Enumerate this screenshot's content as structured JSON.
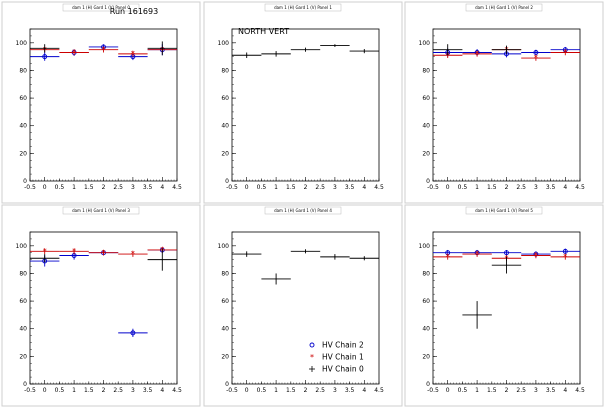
{
  "run_label": "Run 161693",
  "legend": [
    {
      "label": "HV Chain 2",
      "color": "#0000cc",
      "marker": "circle"
    },
    {
      "label": "HV Chain 1",
      "color": "#cc0000",
      "marker": "star"
    },
    {
      "label": "HV Chain 0",
      "color": "#000000",
      "marker": "cross"
    }
  ],
  "chart_data": [
    {
      "type": "scatter",
      "pad_title": "dam 1 (H) Gard 1 (V) Panel 0",
      "xlim": [
        -0.5,
        4.5
      ],
      "ylim": [
        0,
        110
      ],
      "xticks": [
        "-0.5",
        "0",
        "0.5",
        "1",
        "1.5",
        "2",
        "2.5",
        "3",
        "3.5",
        "4",
        "4.5"
      ],
      "yticks": [
        "0",
        "20",
        "40",
        "60",
        "80",
        "100"
      ],
      "series": [
        {
          "name": "HV Chain 2",
          "color": "#0000cc",
          "points": [
            {
              "x": 0,
              "y": 90,
              "err": 3
            },
            {
              "x": 1,
              "y": 93,
              "err": 2.5
            },
            {
              "x": 2,
              "y": 97,
              "err": 2
            },
            {
              "x": 3,
              "y": 90,
              "err": 2.5
            },
            {
              "x": 4,
              "y": 95,
              "err": 4
            }
          ]
        },
        {
          "name": "HV Chain 1",
          "color": "#cc0000",
          "points": [
            {
              "x": 0,
              "y": 95,
              "err": 2
            },
            {
              "x": 1,
              "y": 93,
              "err": 2
            },
            {
              "x": 2,
              "y": 95,
              "err": 2
            },
            {
              "x": 3,
              "y": 92,
              "err": 2
            },
            {
              "x": 4,
              "y": 95,
              "err": 2
            }
          ]
        },
        {
          "name": "HV Chain 0",
          "color": "#000000",
          "points": [
            {
              "x": 0,
              "y": 96,
              "err": 3
            },
            {
              "x": 4,
              "y": 96,
              "err": 5
            }
          ]
        }
      ]
    },
    {
      "type": "scatter",
      "pad_title": "dam 1 (H) Gard 1 (V) Panel 1",
      "label": "NORTH VERT",
      "xlim": [
        -0.5,
        4.5
      ],
      "ylim": [
        0,
        110
      ],
      "xticks": [
        "-0.5",
        "0",
        "0.5",
        "1",
        "1.5",
        "2",
        "2.5",
        "3",
        "3.5",
        "4",
        "4.5"
      ],
      "yticks": [
        "0",
        "20",
        "40",
        "60",
        "80",
        "100"
      ],
      "series": [
        {
          "name": "HV Chain 0",
          "color": "#000000",
          "points": [
            {
              "x": 0,
              "y": 91,
              "err": 2
            },
            {
              "x": 1,
              "y": 92,
              "err": 2
            },
            {
              "x": 2,
              "y": 95,
              "err": 1.5
            },
            {
              "x": 3,
              "y": 98,
              "err": 1
            },
            {
              "x": 4,
              "y": 94,
              "err": 1.5
            }
          ]
        }
      ]
    },
    {
      "type": "scatter",
      "pad_title": "dam 1 (H) Gard 1 (V) Panel 2",
      "xlim": [
        -0.5,
        4.5
      ],
      "ylim": [
        0,
        110
      ],
      "xticks": [
        "-0.5",
        "0",
        "0.5",
        "1",
        "1.5",
        "2",
        "2.5",
        "3",
        "3.5",
        "4",
        "4.5"
      ],
      "yticks": [
        "0",
        "20",
        "40",
        "60",
        "80",
        "100"
      ],
      "series": [
        {
          "name": "HV Chain 2",
          "color": "#0000cc",
          "points": [
            {
              "x": 0,
              "y": 93,
              "err": 3
            },
            {
              "x": 1,
              "y": 93,
              "err": 2.5
            },
            {
              "x": 2,
              "y": 92,
              "err": 2.5
            },
            {
              "x": 3,
              "y": 93,
              "err": 2
            },
            {
              "x": 4,
              "y": 95,
              "err": 2
            }
          ]
        },
        {
          "name": "HV Chain 1",
          "color": "#cc0000",
          "points": [
            {
              "x": 0,
              "y": 91,
              "err": 2
            },
            {
              "x": 1,
              "y": 92,
              "err": 2
            },
            {
              "x": 2,
              "y": 95,
              "err": 2
            },
            {
              "x": 3,
              "y": 89,
              "err": 2
            },
            {
              "x": 4,
              "y": 93,
              "err": 2
            }
          ]
        },
        {
          "name": "HV Chain 0",
          "color": "#000000",
          "points": [
            {
              "x": 0,
              "y": 95,
              "err": 4
            },
            {
              "x": 2,
              "y": 95,
              "err": 3
            }
          ]
        }
      ]
    },
    {
      "type": "scatter",
      "pad_title": "dam 1 (H) Gard 1 (V) Panel 3",
      "xlim": [
        -0.5,
        4.5
      ],
      "ylim": [
        0,
        110
      ],
      "xticks": [
        "-0.5",
        "0",
        "0.5",
        "1",
        "1.5",
        "2",
        "2.5",
        "3",
        "3.5",
        "4",
        "4.5"
      ],
      "yticks": [
        "0",
        "20",
        "40",
        "60",
        "80",
        "100"
      ],
      "series": [
        {
          "name": "HV Chain 2",
          "color": "#0000cc",
          "points": [
            {
              "x": 0,
              "y": 89,
              "err": 4
            },
            {
              "x": 1,
              "y": 93,
              "err": 3
            },
            {
              "x": 2,
              "y": 95,
              "err": 2
            },
            {
              "x": 3,
              "y": 37,
              "err": 3
            },
            {
              "x": 4,
              "y": 97,
              "err": 2
            }
          ]
        },
        {
          "name": "HV Chain 1",
          "color": "#cc0000",
          "points": [
            {
              "x": 0,
              "y": 96,
              "err": 2
            },
            {
              "x": 1,
              "y": 96,
              "err": 2
            },
            {
              "x": 2,
              "y": 95,
              "err": 2
            },
            {
              "x": 3,
              "y": 94,
              "err": 2
            },
            {
              "x": 4,
              "y": 97,
              "err": 2
            }
          ]
        },
        {
          "name": "HV Chain 0",
          "color": "#000000",
          "points": [
            {
              "x": 0,
              "y": 91,
              "err": 3
            },
            {
              "x": 4,
              "y": 90,
              "err": 8
            }
          ]
        }
      ]
    },
    {
      "type": "scatter",
      "pad_title": "dam 1 (H) Gard 1 (V) Panel 4",
      "xlim": [
        -0.5,
        4.5
      ],
      "ylim": [
        0,
        110
      ],
      "xticks": [
        "-0.5",
        "0",
        "0.5",
        "1",
        "1.5",
        "2",
        "2.5",
        "3",
        "3.5",
        "4",
        "4.5"
      ],
      "yticks": [
        "0",
        "20",
        "40",
        "60",
        "80",
        "100"
      ],
      "show_legend": true,
      "series": [
        {
          "name": "HV Chain 0",
          "color": "#000000",
          "points": [
            {
              "x": 0,
              "y": 94,
              "err": 2
            },
            {
              "x": 1,
              "y": 76,
              "err": 4
            },
            {
              "x": 2,
              "y": 96,
              "err": 1.5
            },
            {
              "x": 3,
              "y": 92,
              "err": 2
            },
            {
              "x": 4,
              "y": 91,
              "err": 1.5
            }
          ]
        }
      ]
    },
    {
      "type": "scatter",
      "pad_title": "dam 1 (H) Gard 1 (V) Panel 5",
      "xlim": [
        -0.5,
        4.5
      ],
      "ylim": [
        0,
        110
      ],
      "xticks": [
        "-0.5",
        "0",
        "0.5",
        "1",
        "1.5",
        "2",
        "2.5",
        "3",
        "3.5",
        "4",
        "4.5"
      ],
      "yticks": [
        "0",
        "20",
        "40",
        "60",
        "80",
        "100"
      ],
      "series": [
        {
          "name": "HV Chain 2",
          "color": "#0000cc",
          "points": [
            {
              "x": 0,
              "y": 95,
              "err": 2
            },
            {
              "x": 1,
              "y": 95,
              "err": 2
            },
            {
              "x": 2,
              "y": 95,
              "err": 2
            },
            {
              "x": 3,
              "y": 94,
              "err": 2
            },
            {
              "x": 4,
              "y": 96,
              "err": 2
            }
          ]
        },
        {
          "name": "HV Chain 1",
          "color": "#cc0000",
          "points": [
            {
              "x": 0,
              "y": 92,
              "err": 2
            },
            {
              "x": 1,
              "y": 94,
              "err": 2
            },
            {
              "x": 2,
              "y": 91,
              "err": 2
            },
            {
              "x": 3,
              "y": 93,
              "err": 2
            },
            {
              "x": 4,
              "y": 92,
              "err": 2
            }
          ]
        },
        {
          "name": "HV Chain 0",
          "color": "#000000",
          "points": [
            {
              "x": 1,
              "y": 50,
              "err": 10
            },
            {
              "x": 2,
              "y": 86,
              "err": 6
            }
          ]
        }
      ]
    }
  ]
}
